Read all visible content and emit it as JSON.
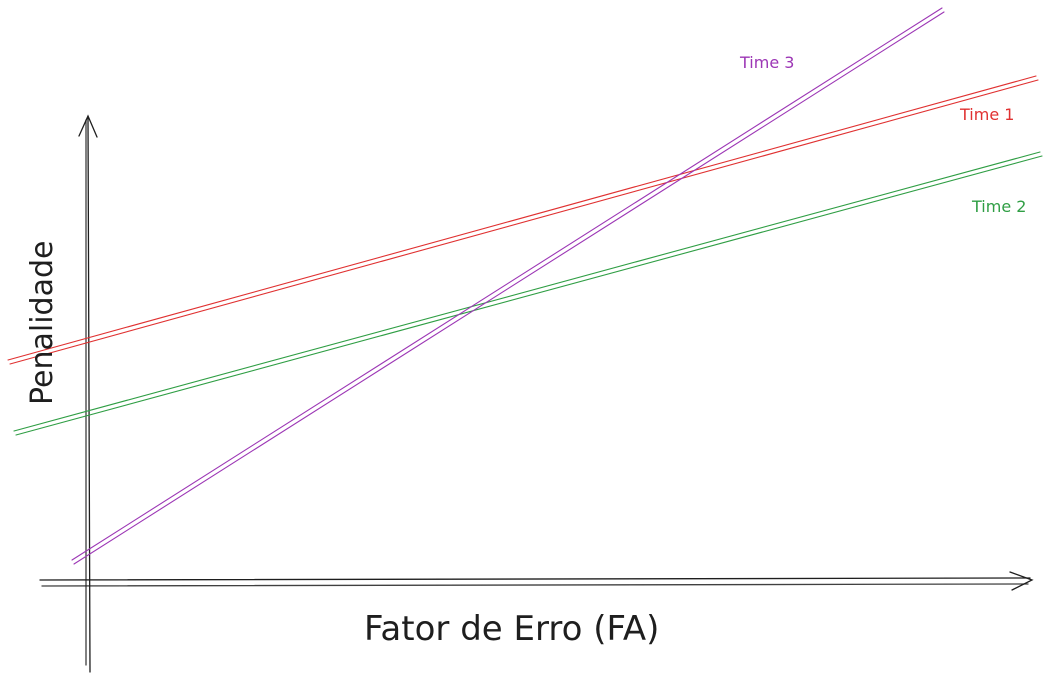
{
  "diagram": {
    "xlabel": "Fator de Erro (FA)",
    "ylabel": "Penalidade"
  },
  "series": [
    {
      "name": "Time 1",
      "color": "#e03131"
    },
    {
      "name": "Time 2",
      "color": "#2f9e44"
    },
    {
      "name": "Time 3",
      "color": "#9c36b5"
    }
  ],
  "colors": {
    "axis": "#1e1e1e",
    "background": "#ffffff"
  }
}
